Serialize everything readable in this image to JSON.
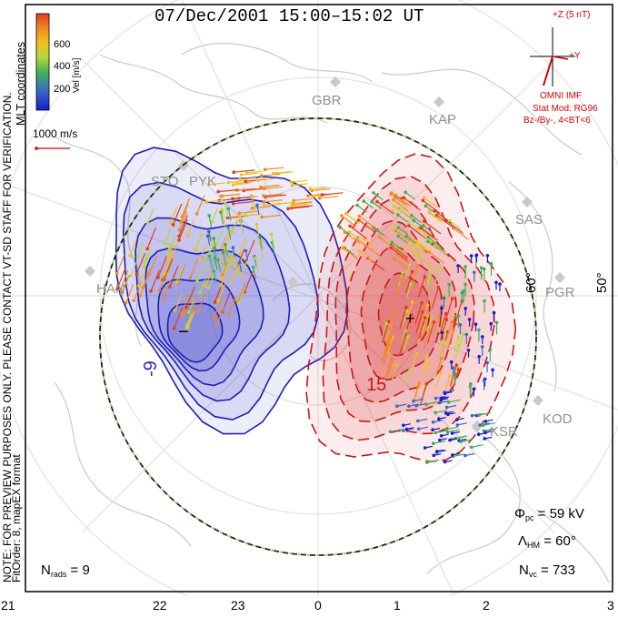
{
  "title": "07/Dec/2001 15:00–15:02 UT",
  "colorbar": {
    "unit_label": "Vel [m/s]",
    "ticks": [
      "600",
      "400",
      "200"
    ],
    "colors": [
      "#2020c8",
      "#3a6ac8",
      "#3fae5a",
      "#b4d93a",
      "#f0c020",
      "#f08a20",
      "#e03a20"
    ]
  },
  "coordinates_label": "MLT coordinates",
  "scale_vector_label": "1000 m/s",
  "watermark": "NOTE: FOR PREVIEW PURPOSES ONLY. PLEASE CONTACT VT-SD STAFF FOR VERIFICATION.",
  "fit_info": "FitOrder: 8, mapEX format",
  "imf": {
    "scale_label": "+Z (5 nT)",
    "y_label": "+Y",
    "source": "OMNI IMF",
    "model": "Stat Mod: RG96",
    "model_detail": "Bz-/By-, 4<BT<6"
  },
  "radar_sites": [
    "GBR",
    "KAP",
    "STO",
    "PYK",
    "SAS",
    "HAN",
    "PGR",
    "KOD",
    "KSR"
  ],
  "latitude_labels": [
    "60°",
    "50°"
  ],
  "potential_labels": [
    "-9",
    "15"
  ],
  "markers": {
    "min": "−",
    "max": "+"
  },
  "stats": {
    "phi_pc": {
      "symbol": "Φ",
      "sub": "pc",
      "value": "= 59 kV"
    },
    "lambda_hm": {
      "symbol": "Λ",
      "sub": "HM",
      "value": "= 60°"
    },
    "n_vc": {
      "symbol": "N",
      "sub": "vc",
      "value": "= 733"
    },
    "n_rads": {
      "symbol": "N",
      "sub": "rads",
      "value": "= 9"
    }
  },
  "mlt_axis": [
    "21",
    "22",
    "23",
    "0",
    "1",
    "2",
    "3"
  ],
  "colors": {
    "negative_cell": "#3535c8",
    "positive_cell": "#d42020",
    "boundary": "#222222",
    "imf_vector": "#d40000"
  }
}
